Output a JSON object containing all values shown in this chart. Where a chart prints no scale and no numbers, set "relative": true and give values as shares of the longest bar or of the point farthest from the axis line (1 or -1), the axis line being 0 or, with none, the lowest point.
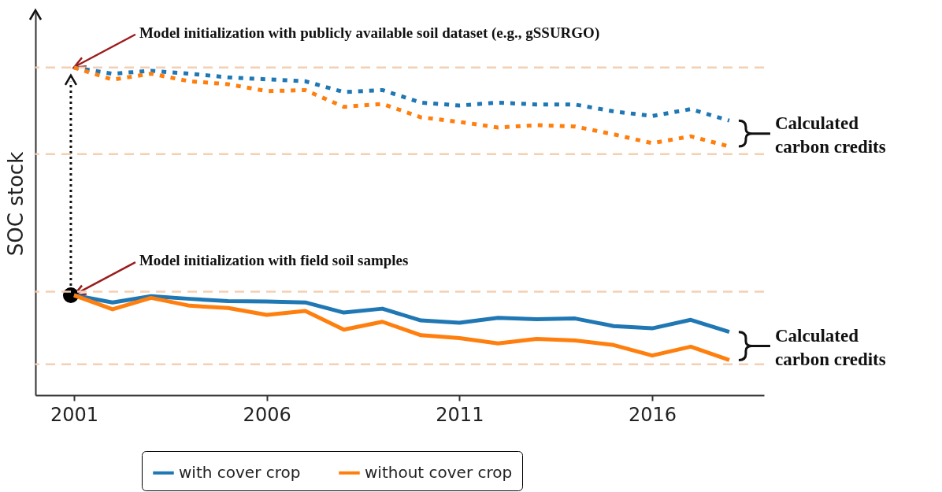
{
  "chart_data": {
    "type": "line",
    "relative": true,
    "ylabel": "SOC stock",
    "line_style": "solid",
    "legend": "bottom",
    "x": [
      2001,
      2002,
      2003,
      2004,
      2005,
      2006,
      2007,
      2008,
      2009,
      2010,
      2011,
      2012,
      2013,
      2014,
      2015,
      2016,
      2017,
      2018
    ],
    "xlim": [
      2000,
      2018.9
    ],
    "xticks": [
      2001,
      2006,
      2011,
      2016
    ],
    "series": [
      {
        "color": "#1f77b4",
        "line_style": "dotted",
        "values": [
          1.0,
          0.981,
          0.99,
          0.981,
          0.97,
          0.964,
          0.958,
          0.925,
          0.931,
          0.893,
          0.884,
          0.893,
          0.887,
          0.887,
          0.866,
          0.852,
          0.873,
          0.838
        ]
      },
      {
        "color": "#ff7f0e",
        "line_style": "dotted",
        "values": [
          1.0,
          0.963,
          0.981,
          0.958,
          0.949,
          0.928,
          0.931,
          0.88,
          0.889,
          0.848,
          0.834,
          0.817,
          0.824,
          0.82,
          0.796,
          0.769,
          0.79,
          0.759
        ]
      },
      {
        "name": "with cover crop",
        "color": "#1f77b4",
        "values": [
          0.305,
          0.283,
          0.302,
          0.294,
          0.287,
          0.286,
          0.283,
          0.252,
          0.264,
          0.228,
          0.221,
          0.236,
          0.232,
          0.234,
          0.211,
          0.204,
          0.23,
          0.193
        ]
      },
      {
        "name": "without cover crop",
        "color": "#ff7f0e",
        "values": [
          0.305,
          0.262,
          0.297,
          0.273,
          0.266,
          0.245,
          0.257,
          0.2,
          0.224,
          0.183,
          0.174,
          0.158,
          0.172,
          0.167,
          0.153,
          0.121,
          0.148,
          0.107
        ]
      }
    ],
    "ref_lines": [
      {
        "axis": "y",
        "value": 1.0,
        "color": "#f3cfb3",
        "line_style": "dashed"
      },
      {
        "axis": "y",
        "value": 0.736,
        "color": "#f3cfb3",
        "line_style": "dashed"
      },
      {
        "axis": "y",
        "value": 0.316,
        "color": "#f3cfb3",
        "line_style": "dashed"
      },
      {
        "axis": "y",
        "value": 0.094,
        "color": "#f3cfb3",
        "line_style": "dashed"
      }
    ],
    "annotations": [
      {
        "text": "Model initialization with publicly available soil dataset (e.g., gSSURGO)",
        "x": 2001,
        "y": 1.0
      },
      {
        "text": "Model initialization with field soil samples",
        "x": 2001,
        "y": 0.305
      },
      "Calculated carbon credits",
      "Calculated carbon credits"
    ]
  }
}
